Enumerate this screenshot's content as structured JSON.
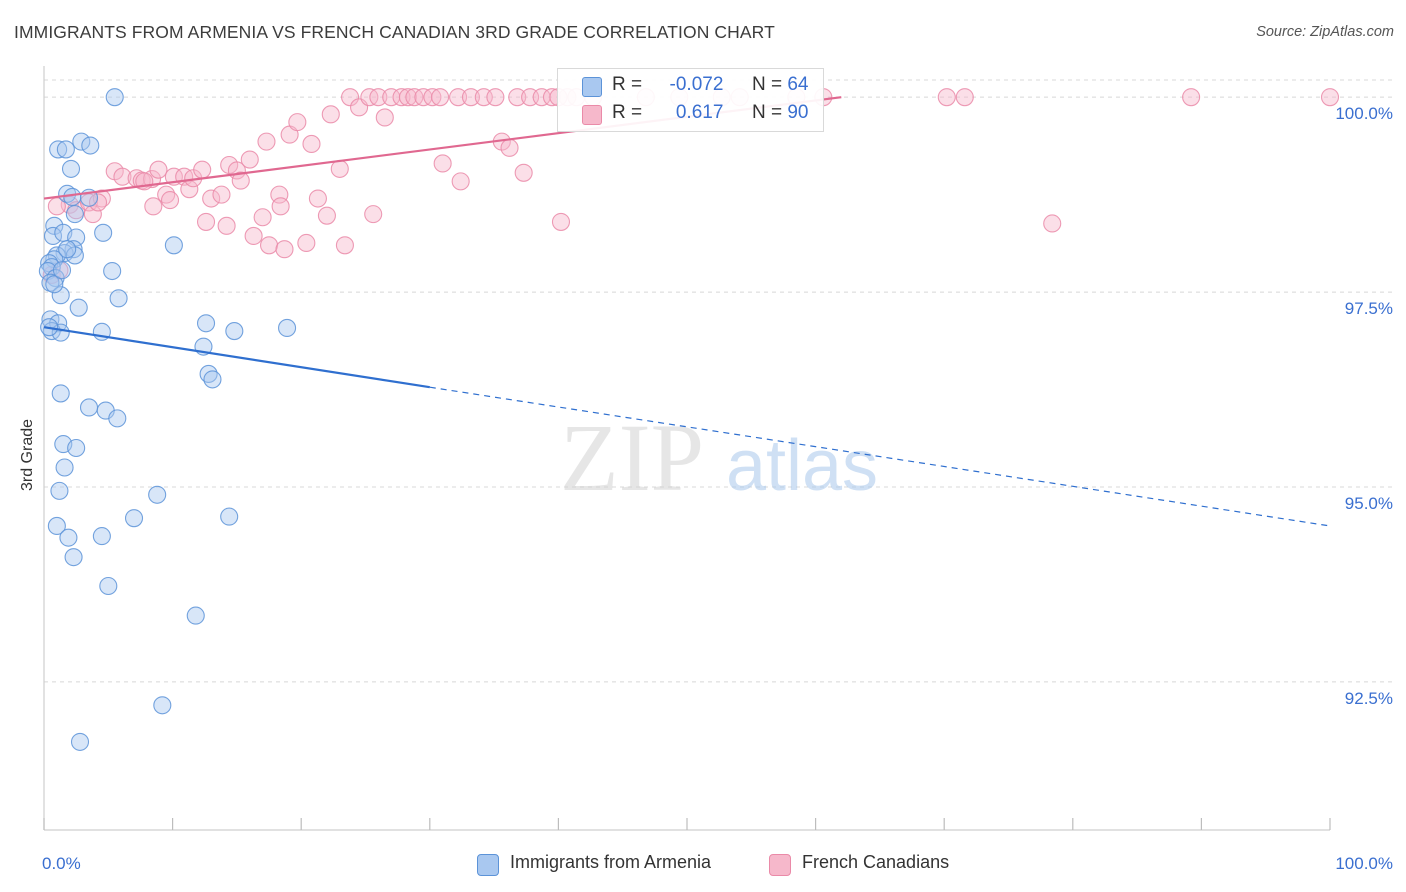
{
  "title": "IMMIGRANTS FROM ARMENIA VS FRENCH CANADIAN 3RD GRADE CORRELATION CHART",
  "source": "Source: ZipAtlas.com",
  "watermark": {
    "zip": "ZIP",
    "atlas": "atlas"
  },
  "colors": {
    "blue_fill": "#a9c8f0",
    "blue_stroke": "#5c93d8",
    "blue_line": "#2f6fcf",
    "pink_fill": "#f6b8cb",
    "pink_stroke": "#ea8aa8",
    "pink_line": "#e06890",
    "axis_label": "#3a6fd0",
    "grid": "#d8d8d8"
  },
  "legend": {
    "rows": [
      {
        "r_label": "R =",
        "r_value": "-0.072",
        "n_label": "N =",
        "n_value": "64"
      },
      {
        "r_label": "R =",
        "r_value": "0.617",
        "n_label": "N =",
        "n_value": "90"
      }
    ]
  },
  "bottom_legend": [
    "Immigrants from Armenia",
    "French Canadians"
  ],
  "chart_data": {
    "type": "scatter",
    "title": "IMMIGRANTS FROM ARMENIA VS FRENCH CANADIAN 3RD GRADE CORRELATION CHART",
    "xlabel": "",
    "ylabel": "3rd Grade",
    "xlim": [
      0,
      100
    ],
    "ylim": [
      90.6,
      100.4
    ],
    "x_tick_labels": [
      "0.0%",
      "100.0%"
    ],
    "y_ticks": [
      92.5,
      95.0,
      97.5,
      100.0
    ],
    "y_tick_labels": [
      "92.5%",
      "95.0%",
      "97.5%",
      "100.0%"
    ],
    "grid": true,
    "series": [
      {
        "name": "Immigrants from Armenia",
        "color": "blue",
        "r": -0.072,
        "n": 64,
        "trend_solid": {
          "x": [
            0,
            30
          ],
          "y": [
            97.05,
            96.28
          ]
        },
        "trend_dashed": {
          "x": [
            30,
            100
          ],
          "y": [
            96.28,
            94.5
          ]
        },
        "points": [
          [
            5.5,
            100.0
          ],
          [
            1.1,
            99.33
          ],
          [
            1.7,
            99.33
          ],
          [
            2.9,
            99.43
          ],
          [
            3.6,
            99.38
          ],
          [
            2.1,
            99.08
          ],
          [
            1.8,
            98.76
          ],
          [
            3.5,
            98.71
          ],
          [
            2.4,
            98.5
          ],
          [
            0.8,
            98.35
          ],
          [
            0.7,
            98.22
          ],
          [
            1.5,
            98.26
          ],
          [
            2.5,
            98.2
          ],
          [
            4.6,
            98.26
          ],
          [
            2.3,
            98.05
          ],
          [
            1.6,
            98.0
          ],
          [
            1.0,
            97.97
          ],
          [
            2.4,
            97.97
          ],
          [
            0.8,
            97.92
          ],
          [
            0.4,
            97.87
          ],
          [
            0.6,
            97.82
          ],
          [
            0.3,
            97.77
          ],
          [
            5.3,
            97.77
          ],
          [
            0.9,
            97.68
          ],
          [
            0.5,
            97.62
          ],
          [
            1.3,
            97.46
          ],
          [
            5.8,
            97.42
          ],
          [
            2.7,
            97.3
          ],
          [
            0.5,
            97.15
          ],
          [
            1.1,
            97.1
          ],
          [
            12.6,
            97.1
          ],
          [
            0.6,
            97.0
          ],
          [
            1.3,
            96.98
          ],
          [
            4.5,
            96.99
          ],
          [
            18.9,
            97.04
          ],
          [
            12.4,
            96.8
          ],
          [
            12.8,
            96.45
          ],
          [
            13.1,
            96.38
          ],
          [
            1.3,
            96.2
          ],
          [
            3.5,
            96.02
          ],
          [
            4.8,
            95.98
          ],
          [
            5.7,
            95.88
          ],
          [
            1.5,
            95.55
          ],
          [
            2.5,
            95.5
          ],
          [
            1.6,
            95.25
          ],
          [
            1.2,
            94.95
          ],
          [
            8.8,
            94.9
          ],
          [
            1.0,
            94.5
          ],
          [
            7.0,
            94.6
          ],
          [
            14.4,
            94.62
          ],
          [
            1.9,
            94.35
          ],
          [
            4.5,
            94.37
          ],
          [
            2.3,
            94.1
          ],
          [
            5.0,
            93.73
          ],
          [
            11.8,
            93.35
          ],
          [
            9.2,
            92.2
          ],
          [
            2.8,
            91.73
          ],
          [
            0.4,
            97.05
          ],
          [
            1.8,
            98.05
          ],
          [
            0.8,
            97.6
          ],
          [
            2.2,
            98.72
          ],
          [
            1.4,
            97.78
          ],
          [
            10.1,
            98.1
          ],
          [
            14.8,
            97.0
          ]
        ]
      },
      {
        "name": "French Canadians",
        "color": "pink",
        "r": 0.617,
        "n": 90,
        "trend_solid": {
          "x": [
            0,
            62
          ],
          "y": [
            98.7,
            100.0
          ]
        },
        "points": [
          [
            2.0,
            98.62
          ],
          [
            2.5,
            98.55
          ],
          [
            3.5,
            98.65
          ],
          [
            4.5,
            98.7
          ],
          [
            1.0,
            98.6
          ],
          [
            0.6,
            97.72
          ],
          [
            1.2,
            97.78
          ],
          [
            5.5,
            99.05
          ],
          [
            6.1,
            98.98
          ],
          [
            7.2,
            98.96
          ],
          [
            7.6,
            98.93
          ],
          [
            8.4,
            98.95
          ],
          [
            8.5,
            98.6
          ],
          [
            8.9,
            99.07
          ],
          [
            9.5,
            98.75
          ],
          [
            10.1,
            98.98
          ],
          [
            10.9,
            98.98
          ],
          [
            11.3,
            98.82
          ],
          [
            11.6,
            98.96
          ],
          [
            12.3,
            99.07
          ],
          [
            12.6,
            98.4
          ],
          [
            13.0,
            98.7
          ],
          [
            14.2,
            98.35
          ],
          [
            14.4,
            99.13
          ],
          [
            15.0,
            99.06
          ],
          [
            15.3,
            98.93
          ],
          [
            16.0,
            99.2
          ],
          [
            16.3,
            98.22
          ],
          [
            17.0,
            98.46
          ],
          [
            17.3,
            99.43
          ],
          [
            17.5,
            98.1
          ],
          [
            18.3,
            98.75
          ],
          [
            18.7,
            98.05
          ],
          [
            19.1,
            99.52
          ],
          [
            19.7,
            99.68
          ],
          [
            20.4,
            98.13
          ],
          [
            20.8,
            99.4
          ],
          [
            21.3,
            98.7
          ],
          [
            22.0,
            98.48
          ],
          [
            22.3,
            99.78
          ],
          [
            23.0,
            99.08
          ],
          [
            23.4,
            98.1
          ],
          [
            23.8,
            100.0
          ],
          [
            24.5,
            99.87
          ],
          [
            25.3,
            100.0
          ],
          [
            25.6,
            98.5
          ],
          [
            26.0,
            100.0
          ],
          [
            26.5,
            99.74
          ],
          [
            27.0,
            100.0
          ],
          [
            27.8,
            100.0
          ],
          [
            28.3,
            100.0
          ],
          [
            28.8,
            100.0
          ],
          [
            29.5,
            100.0
          ],
          [
            30.2,
            100.0
          ],
          [
            30.8,
            100.0
          ],
          [
            31.0,
            99.15
          ],
          [
            32.2,
            100.0
          ],
          [
            32.4,
            98.92
          ],
          [
            33.2,
            100.0
          ],
          [
            34.2,
            100.0
          ],
          [
            35.1,
            100.0
          ],
          [
            35.6,
            99.43
          ],
          [
            36.2,
            99.35
          ],
          [
            36.8,
            100.0
          ],
          [
            37.3,
            99.03
          ],
          [
            37.8,
            100.0
          ],
          [
            38.7,
            100.0
          ],
          [
            39.5,
            100.0
          ],
          [
            40.2,
            98.4
          ],
          [
            40.7,
            100.0
          ],
          [
            41.4,
            100.0
          ],
          [
            42.7,
            100.0
          ],
          [
            46.8,
            100.0
          ],
          [
            49.4,
            100.0
          ],
          [
            52.7,
            100.0
          ],
          [
            54.1,
            100.0
          ],
          [
            58.5,
            100.0
          ],
          [
            60.6,
            100.0
          ],
          [
            78.4,
            98.38
          ],
          [
            71.6,
            100.0
          ],
          [
            70.2,
            100.0
          ],
          [
            89.2,
            100.0
          ],
          [
            100.0,
            100.0
          ],
          [
            3.8,
            98.5
          ],
          [
            4.2,
            98.65
          ],
          [
            7.8,
            98.92
          ],
          [
            9.8,
            98.68
          ],
          [
            13.8,
            98.75
          ],
          [
            18.4,
            98.6
          ],
          [
            40.0,
            100.0
          ]
        ]
      }
    ]
  }
}
